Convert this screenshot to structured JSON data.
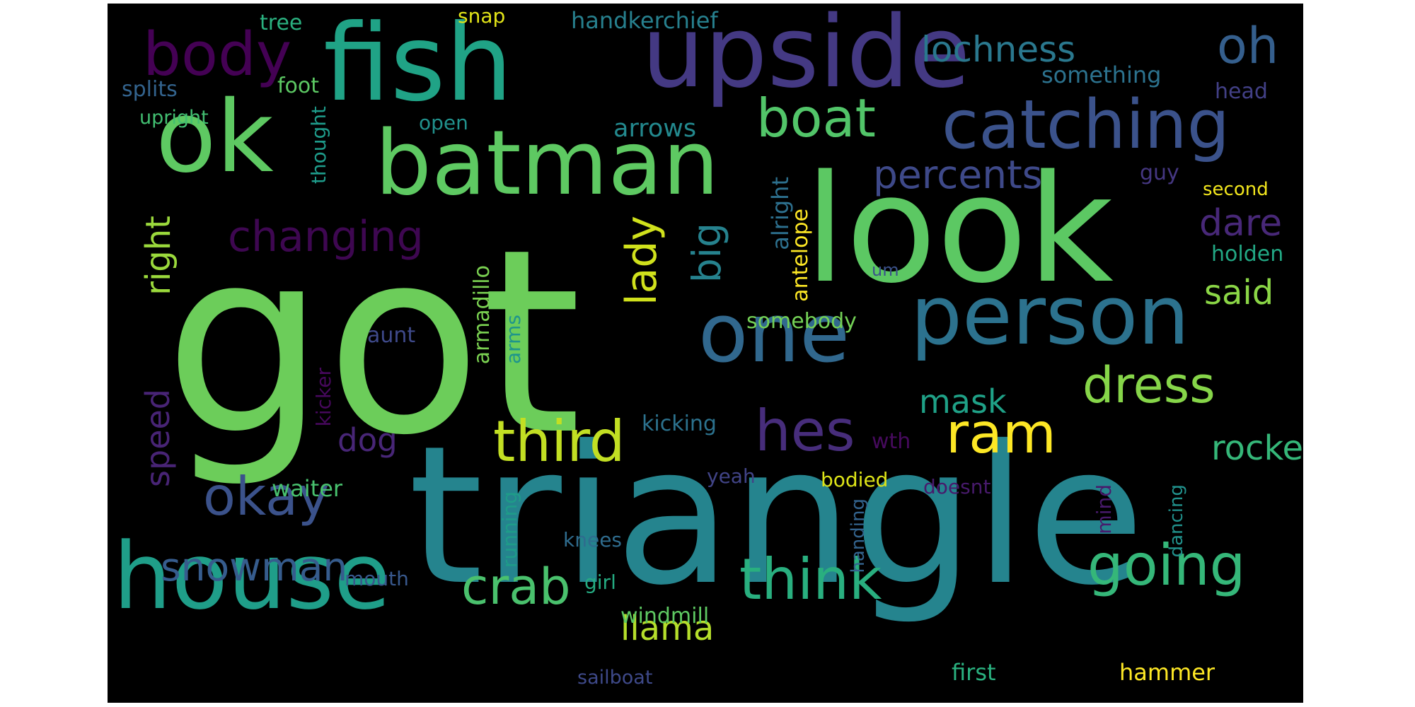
{
  "background": "#000000",
  "words": [
    {
      "text": "got",
      "color": "#6ccd5a"
    },
    {
      "text": "triangle",
      "color": "#25848e"
    },
    {
      "text": "look",
      "color": "#5cc863"
    },
    {
      "text": "fish",
      "color": "#20a386"
    },
    {
      "text": "upside",
      "color": "#443983"
    },
    {
      "text": "ok",
      "color": "#5ec962"
    },
    {
      "text": "batman",
      "color": "#5ec962"
    },
    {
      "text": "house",
      "color": "#1f9e89"
    },
    {
      "text": "person",
      "color": "#2c728e"
    },
    {
      "text": "one",
      "color": "#31688e"
    },
    {
      "text": "catching",
      "color": "#3b528b"
    },
    {
      "text": "body",
      "color": "#440154"
    },
    {
      "text": "think",
      "color": "#29af7f"
    },
    {
      "text": "going",
      "color": "#35b779"
    },
    {
      "text": "third",
      "color": "#c2df23"
    },
    {
      "text": "ram",
      "color": "#fde725"
    },
    {
      "text": "hes",
      "color": "#472d7b"
    },
    {
      "text": "okay",
      "color": "#3b528b"
    },
    {
      "text": "crab",
      "color": "#4ac16d"
    },
    {
      "text": "boat",
      "color": "#52c569"
    },
    {
      "text": "dress",
      "color": "#86d549"
    },
    {
      "text": "lady",
      "color": "#d0e11c"
    },
    {
      "text": "changing",
      "color": "#3e0751"
    },
    {
      "text": "right",
      "color": "#9bd93c"
    },
    {
      "text": "percents",
      "color": "#3e4989"
    },
    {
      "text": "big",
      "color": "#26828e"
    },
    {
      "text": "snowman",
      "color": "#365c8d"
    },
    {
      "text": "lochness",
      "color": "#2a788e"
    },
    {
      "text": "oh",
      "color": "#355f8d"
    },
    {
      "text": "llama",
      "color": "#b5de2b"
    },
    {
      "text": "speed",
      "color": "#482475"
    },
    {
      "text": "rocket",
      "color": "#35b779"
    },
    {
      "text": "dare",
      "color": "#482878"
    },
    {
      "text": "mask",
      "color": "#1fa187"
    },
    {
      "text": "said",
      "color": "#8bd646"
    },
    {
      "text": "dog",
      "color": "#482677"
    },
    {
      "text": "handkerchief",
      "color": "#27808e"
    },
    {
      "text": "something",
      "color": "#2c728e"
    },
    {
      "text": "arrows",
      "color": "#23898e"
    },
    {
      "text": "tree",
      "color": "#2ab07f"
    },
    {
      "text": "splits",
      "color": "#33638d"
    },
    {
      "text": "foot",
      "color": "#5cc863"
    },
    {
      "text": "upright",
      "color": "#42be71"
    },
    {
      "text": "thought",
      "color": "#1e9b8a"
    },
    {
      "text": "open",
      "color": "#21918c"
    },
    {
      "text": "snap",
      "color": "#e2e418"
    },
    {
      "text": "head",
      "color": "#424086"
    },
    {
      "text": "guy",
      "color": "#453781"
    },
    {
      "text": "second",
      "color": "#f1e51d"
    },
    {
      "text": "holden",
      "color": "#22a884"
    },
    {
      "text": "alright",
      "color": "#2d708e"
    },
    {
      "text": "antelope",
      "color": "#fde725"
    },
    {
      "text": "um",
      "color": "#3b528b"
    },
    {
      "text": "somebody",
      "color": "#73d056"
    },
    {
      "text": "armadillo",
      "color": "#7ad151"
    },
    {
      "text": "arms",
      "color": "#1f958b"
    },
    {
      "text": "aunt",
      "color": "#3e4989"
    },
    {
      "text": "kicker",
      "color": "#46085c"
    },
    {
      "text": "kicking",
      "color": "#2c728e"
    },
    {
      "text": "wth",
      "color": "#460a5d"
    },
    {
      "text": "yeah",
      "color": "#414487"
    },
    {
      "text": "bodied",
      "color": "#dde318"
    },
    {
      "text": "waiter",
      "color": "#48c16e"
    },
    {
      "text": "doesnt",
      "color": "#481a6c"
    },
    {
      "text": "running",
      "color": "#1e9c89"
    },
    {
      "text": "knees",
      "color": "#2f6c8e"
    },
    {
      "text": "girl",
      "color": "#25ab82"
    },
    {
      "text": "mouth",
      "color": "#38588c"
    },
    {
      "text": "handing",
      "color": "#33638d"
    },
    {
      "text": "mind",
      "color": "#481a6c"
    },
    {
      "text": "dancing",
      "color": "#21918c"
    },
    {
      "text": "windmill",
      "color": "#5ec962"
    },
    {
      "text": "first",
      "color": "#2ab07f"
    },
    {
      "text": "hammer",
      "color": "#fde725"
    },
    {
      "text": "sailboat",
      "color": "#3e4989"
    }
  ]
}
